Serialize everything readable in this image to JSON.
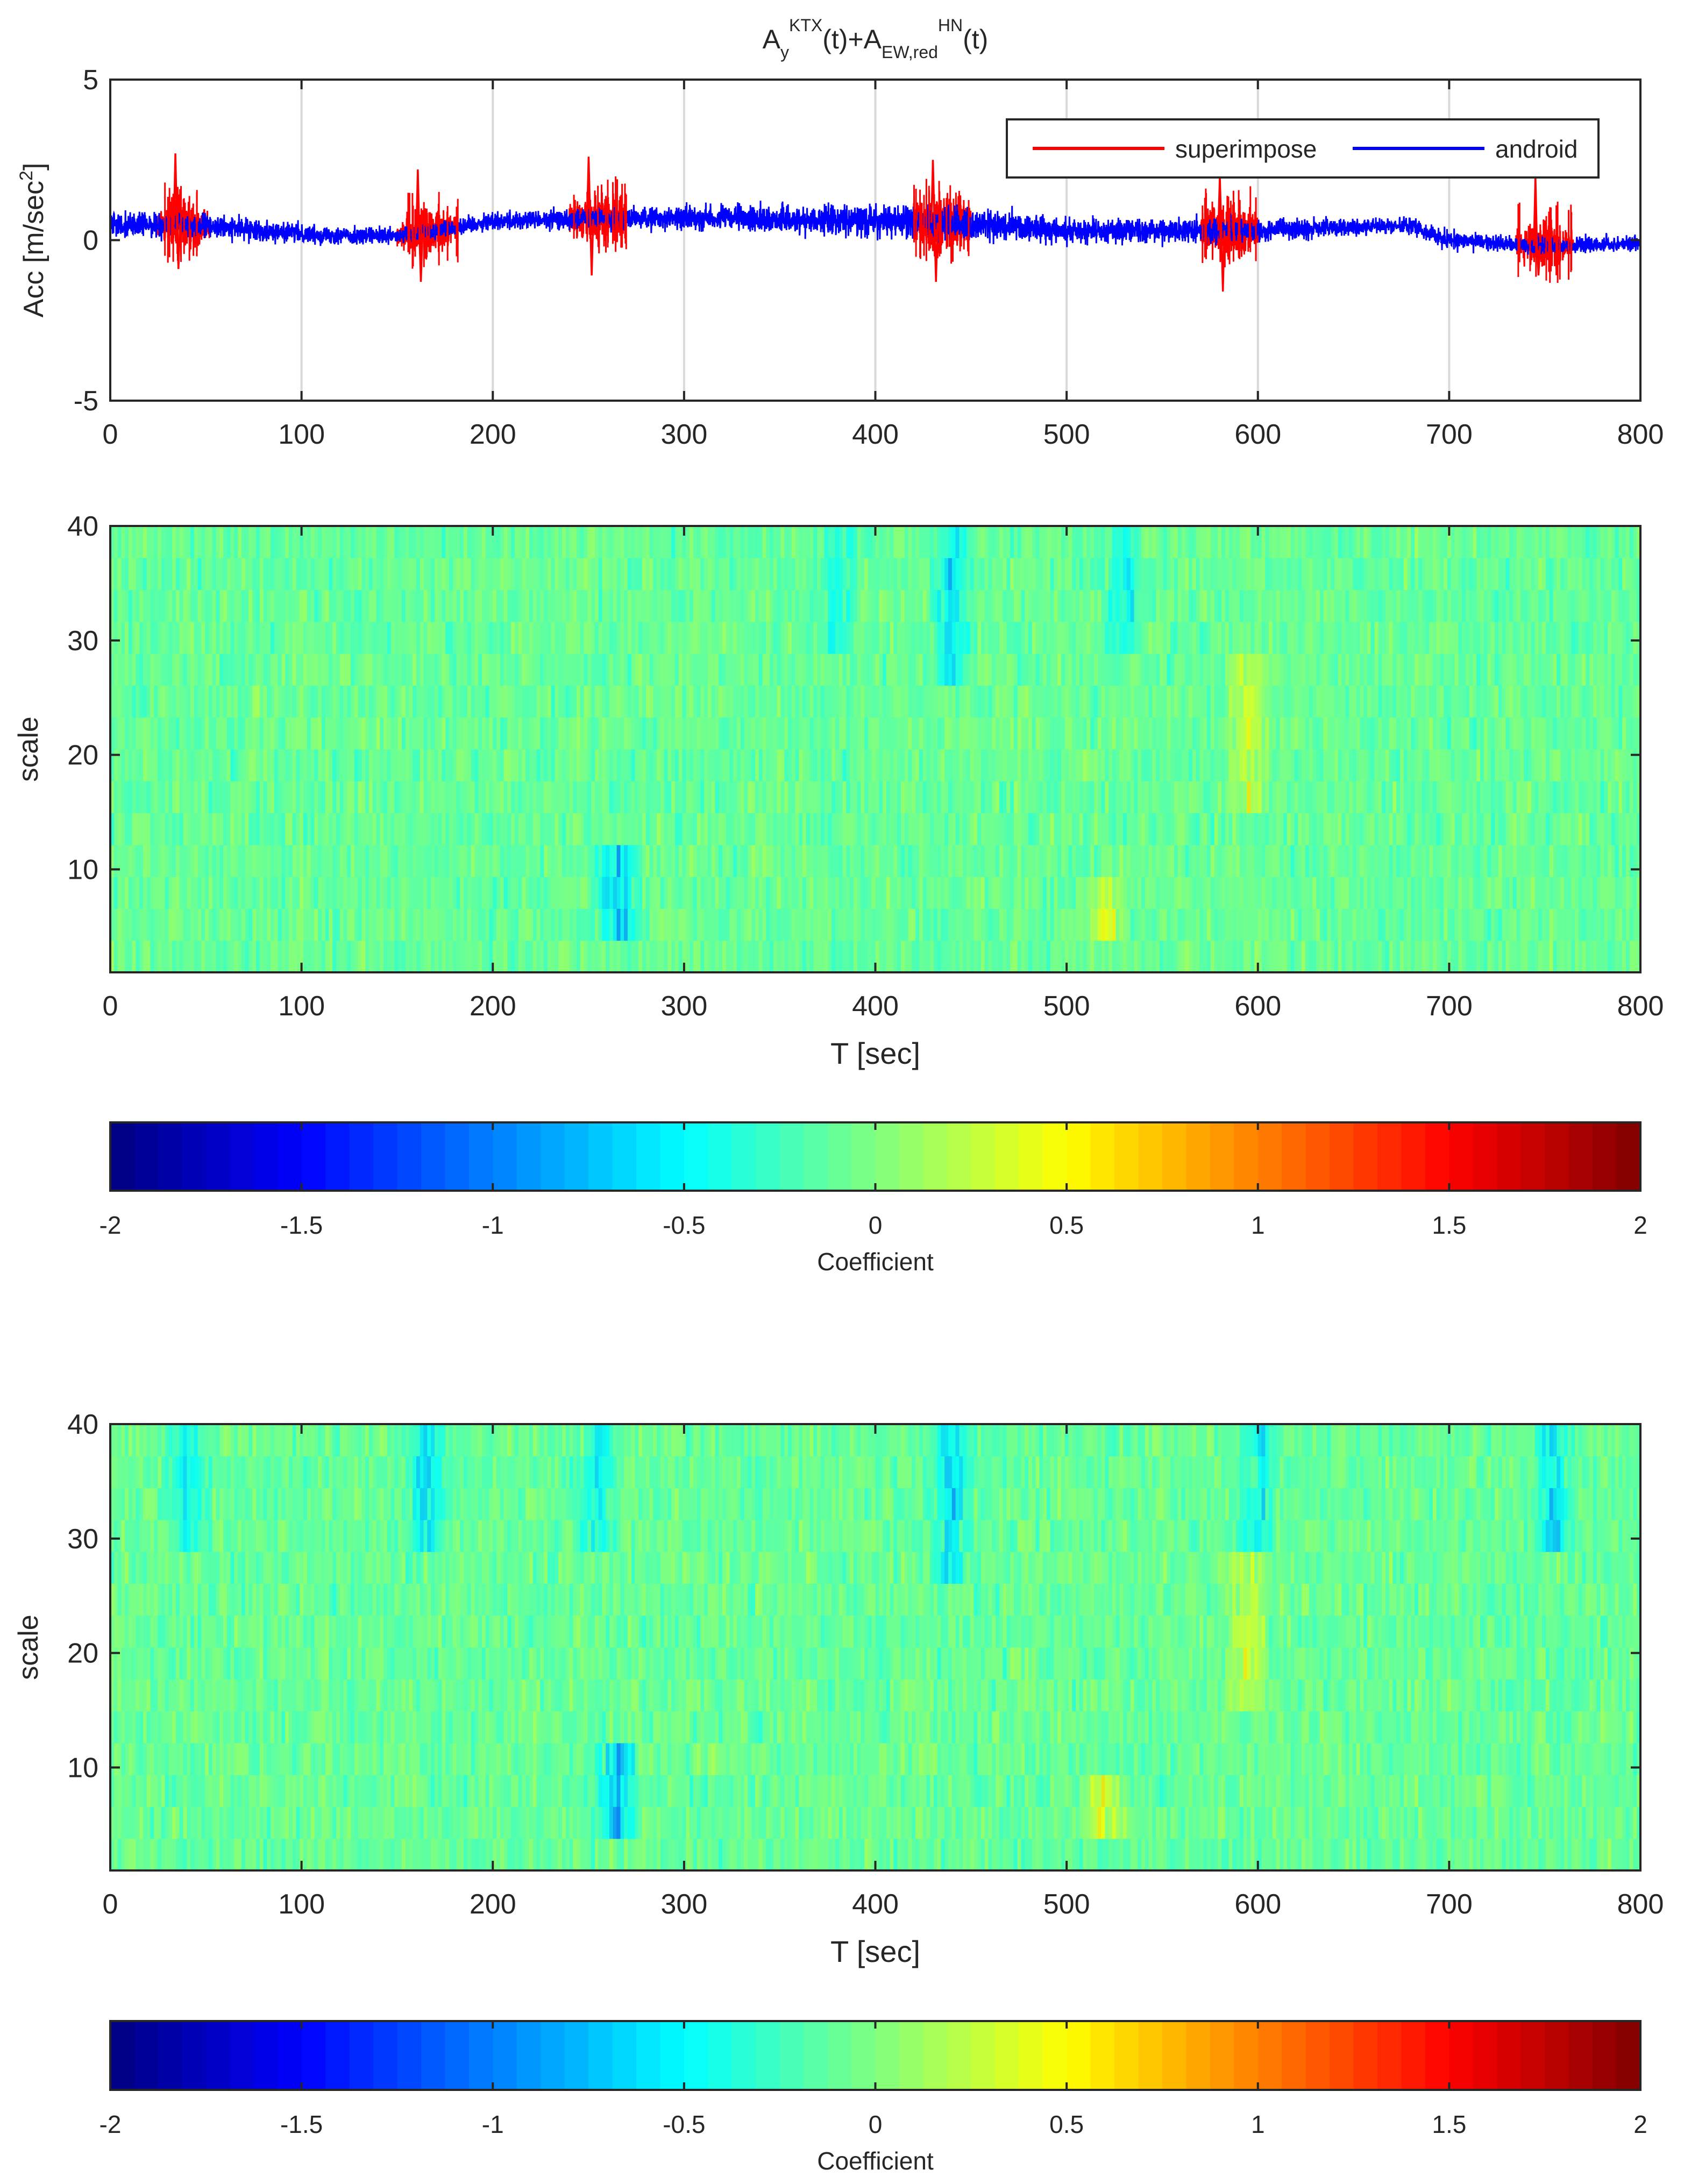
{
  "chart_data": [
    {
      "type": "line",
      "title": {
        "base": "A",
        "sub1": "y",
        "sup1": "KTX",
        "mid": "(t)+A",
        "sub2": "EW,red",
        "sup2": "HN",
        "end": "(t)"
      },
      "xlabel": "",
      "ylabel": "Acc [m/sec",
      "ylabel_sup": "2",
      "ylabel_end": "]",
      "xlim": [
        0,
        800
      ],
      "ylim": [
        -5,
        5
      ],
      "xticks": [
        "0",
        "100",
        "200",
        "300",
        "400",
        "500",
        "600",
        "700",
        "800"
      ],
      "yticks": [
        "-5",
        "0",
        "5"
      ],
      "grid": "vertical",
      "legend_position": "top-right",
      "series": [
        {
          "name": "superimpose",
          "color": "#ff0000",
          "note_bursts": [
            {
              "t_start": 25,
              "t_end": 52,
              "peak_high": 2.7,
              "peak_low": -0.9
            },
            {
              "t_start": 150,
              "t_end": 182,
              "peak_high": 2.2,
              "peak_low": -1.3
            },
            {
              "t_start": 240,
              "t_end": 270,
              "peak_high": 2.6,
              "peak_low": -1.1
            },
            {
              "t_start": 420,
              "t_end": 450,
              "peak_high": 2.5,
              "peak_low": -1.3
            },
            {
              "t_start": 570,
              "t_end": 600,
              "peak_high": 2.0,
              "peak_low": -1.6
            },
            {
              "t_start": 735,
              "t_end": 765,
              "peak_high": 2.0,
              "peak_low": -1.1
            }
          ]
        },
        {
          "name": "android",
          "color": "#0000ff",
          "envelope": [
            {
              "t": 0,
              "mean": 0.5,
              "amp": 0.6
            },
            {
              "t": 50,
              "mean": 0.45,
              "amp": 0.55
            },
            {
              "t": 100,
              "mean": 0.2,
              "amp": 0.45
            },
            {
              "t": 150,
              "mean": 0.1,
              "amp": 0.4
            },
            {
              "t": 200,
              "mean": 0.6,
              "amp": 0.45
            },
            {
              "t": 300,
              "mean": 0.7,
              "amp": 0.55
            },
            {
              "t": 400,
              "mean": 0.6,
              "amp": 0.75
            },
            {
              "t": 450,
              "mean": 0.5,
              "amp": 0.8
            },
            {
              "t": 500,
              "mean": 0.3,
              "amp": 0.6
            },
            {
              "t": 600,
              "mean": 0.3,
              "amp": 0.55
            },
            {
              "t": 680,
              "mean": 0.45,
              "amp": 0.4
            },
            {
              "t": 700,
              "mean": 0.0,
              "amp": 0.4
            },
            {
              "t": 750,
              "mean": -0.2,
              "amp": 0.4
            },
            {
              "t": 800,
              "mean": -0.1,
              "amp": 0.4
            }
          ]
        }
      ]
    },
    {
      "type": "heatmap",
      "xlabel": "T [sec]",
      "ylabel": "scale",
      "xlim": [
        0,
        800
      ],
      "ylim": [
        1,
        40
      ],
      "xticks": [
        "0",
        "100",
        "200",
        "300",
        "400",
        "500",
        "600",
        "700",
        "800"
      ],
      "yticks": [
        "10",
        "20",
        "30",
        "40"
      ],
      "colorbar": {
        "label": "Coefficient",
        "range": [
          -2,
          2
        ],
        "ticks": [
          "-2",
          "-1.5",
          "-1",
          "-0.5",
          "0",
          "0.5",
          "1",
          "1.5",
          "2"
        ],
        "colormap": "jet"
      },
      "features": [
        {
          "t": 265,
          "scale_low": 5,
          "scale_high": 12,
          "sign": -1,
          "strength": 0.8
        },
        {
          "t": 520,
          "scale_low": 3,
          "scale_high": 10,
          "sign": 1,
          "strength": 0.6
        },
        {
          "t": 440,
          "scale_low": 25,
          "scale_high": 40,
          "sign": -1,
          "strength": 0.6
        },
        {
          "t": 595,
          "scale_low": 14,
          "scale_high": 28,
          "sign": 1,
          "strength": 0.5
        },
        {
          "t": 530,
          "scale_low": 28,
          "scale_high": 40,
          "sign": -1,
          "strength": 0.5
        },
        {
          "t": 380,
          "scale_low": 30,
          "scale_high": 40,
          "sign": -1,
          "strength": 0.4
        }
      ]
    },
    {
      "type": "heatmap",
      "xlabel": "T [sec]",
      "ylabel": "scale",
      "xlim": [
        0,
        800
      ],
      "ylim": [
        1,
        40
      ],
      "xticks": [
        "0",
        "100",
        "200",
        "300",
        "400",
        "500",
        "600",
        "700",
        "800"
      ],
      "yticks": [
        "10",
        "20",
        "30",
        "40"
      ],
      "colorbar": {
        "label": "Coefficient",
        "range": [
          -2,
          2
        ],
        "ticks": [
          "-2",
          "-1.5",
          "-1",
          "-0.5",
          "0",
          "0.5",
          "1",
          "1.5",
          "2"
        ],
        "colormap": "jet"
      },
      "features": [
        {
          "t": 265,
          "scale_low": 5,
          "scale_high": 12,
          "sign": -1,
          "strength": 0.8
        },
        {
          "t": 520,
          "scale_low": 3,
          "scale_high": 10,
          "sign": 1,
          "strength": 0.6
        },
        {
          "t": 440,
          "scale_low": 25,
          "scale_high": 40,
          "sign": -1,
          "strength": 0.7
        },
        {
          "t": 595,
          "scale_low": 14,
          "scale_high": 28,
          "sign": 1,
          "strength": 0.5
        },
        {
          "t": 40,
          "scale_low": 28,
          "scale_high": 40,
          "sign": -1,
          "strength": 0.5
        },
        {
          "t": 165,
          "scale_low": 28,
          "scale_high": 40,
          "sign": -1,
          "strength": 0.6
        },
        {
          "t": 255,
          "scale_low": 28,
          "scale_high": 40,
          "sign": -1,
          "strength": 0.5
        },
        {
          "t": 600,
          "scale_low": 30,
          "scale_high": 40,
          "sign": -1,
          "strength": 0.5
        },
        {
          "t": 755,
          "scale_low": 28,
          "scale_high": 40,
          "sign": -1,
          "strength": 0.6
        }
      ]
    }
  ]
}
